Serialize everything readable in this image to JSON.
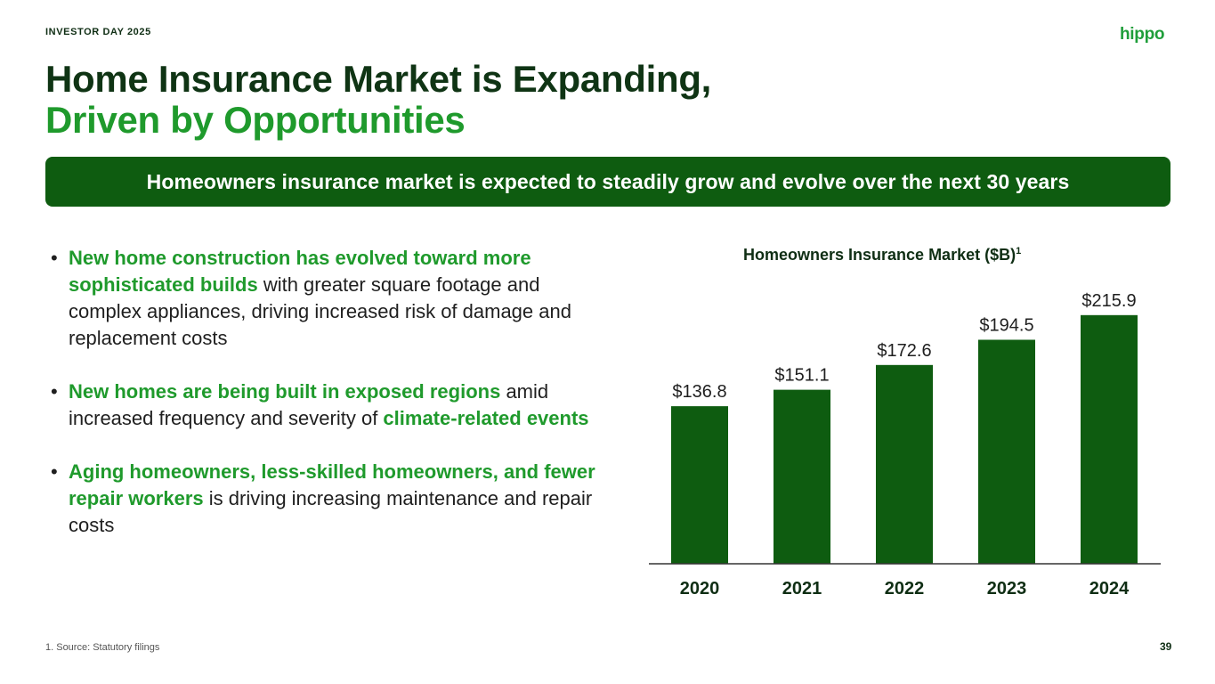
{
  "header": {
    "eyebrow": "INVESTOR DAY 2025",
    "logo": "hippo",
    "title_line1": "Home Insurance Market is Expanding,",
    "title_line2": "Driven by Opportunities"
  },
  "banner": {
    "text": "Homeowners insurance market is expected to steadily grow and evolve over the next 30 years"
  },
  "bullets": [
    {
      "highlight": "New home construction has evolved toward more sophisticated builds",
      "rest": " with greater square footage and complex appliances, driving increased risk of damage and replacement costs"
    },
    {
      "highlight": "New homes are being built in exposed regions",
      "middle": " amid increased frequency and severity of ",
      "highlight2": "climate-related events"
    },
    {
      "highlight": "Aging homeowners, less-skilled homeowners, and fewer repair workers",
      "rest": " is driving increasing maintenance and repair costs"
    }
  ],
  "chart_data": {
    "type": "bar",
    "title": "Homeowners Insurance Market ($B)",
    "title_superscript": "1",
    "categories": [
      "2020",
      "2021",
      "2022",
      "2023",
      "2024"
    ],
    "values": [
      136.8,
      151.1,
      172.6,
      194.5,
      215.9
    ],
    "value_labels": [
      "$136.8",
      "$151.1",
      "$172.6",
      "$194.5",
      "$215.9"
    ],
    "xlabel": "",
    "ylabel": "",
    "ylim": [
      0,
      232
    ],
    "grid": false,
    "legend": "none",
    "bar_color": "#0e5c10"
  },
  "footer": {
    "footnote": "1.   Source: Statutory filings",
    "page": "39"
  },
  "colors": {
    "dark_green": "#0f3414",
    "accent_green": "#1f9a2c",
    "banner_green": "#0e5c10"
  }
}
